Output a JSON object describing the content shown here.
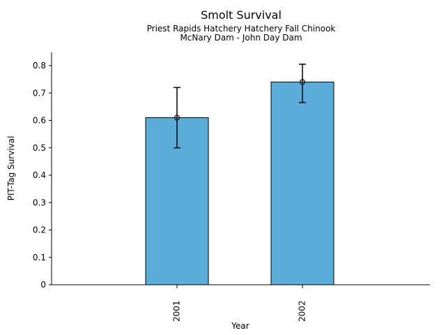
{
  "chart_data": {
    "type": "bar",
    "title": "Smolt Survival",
    "subtitle_lines": [
      "Priest Rapids Hatchery Hatchery Fall Chinook",
      "McNary Dam - John Day Dam"
    ],
    "xlabel": "Year",
    "ylabel": "PIT-Tag Survival",
    "categories": [
      "2001",
      "2002"
    ],
    "values": [
      0.61,
      0.74
    ],
    "error_bars": [
      {
        "low": 0.5,
        "high": 0.72
      },
      {
        "low": 0.665,
        "high": 0.805
      }
    ],
    "marker": "open-circle",
    "yticks": [
      0,
      0.1,
      0.2,
      0.3,
      0.4,
      0.5,
      0.6,
      0.7,
      0.8
    ],
    "ytick_labels": [
      "0",
      "0.1",
      "0.2",
      "0.3",
      "0.4",
      "0.5",
      "0.6",
      "0.7",
      "0.8"
    ],
    "ylim": [
      0,
      0.8
    ],
    "grid": false,
    "legend": null,
    "colors": {
      "bar_fill": "#5AADD8",
      "bar_edge": "#000000",
      "error": "#000000",
      "marker_edge": "#1a1a1a",
      "axis": "#000000",
      "text": "#000000"
    }
  }
}
